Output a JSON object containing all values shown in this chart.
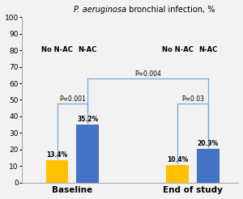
{
  "title_italic": "P. aeruginosa",
  "title_rest": " bronchial infection, %",
  "ylim": [
    0,
    100
  ],
  "yticks": [
    0,
    10,
    20,
    30,
    40,
    50,
    60,
    70,
    80,
    90,
    100
  ],
  "groups": [
    "Baseline",
    "End of study"
  ],
  "bars": {
    "baseline_no_nac": {
      "value": 13.4,
      "color": "#FFC000",
      "label": "13.4%"
    },
    "baseline_nac": {
      "value": 35.2,
      "color": "#4472C4",
      "label": "35.2%"
    },
    "end_no_nac": {
      "value": 10.4,
      "color": "#FFC000",
      "label": "10.4%"
    },
    "end_nac": {
      "value": 20.3,
      "color": "#4472C4",
      "label": "20.3%"
    }
  },
  "pvalues": {
    "baseline": "P=0.001",
    "end": "P=0.03",
    "overall": "P=0.004"
  },
  "background_color": "#f2f2f2",
  "bracket_color": "#7da6d4"
}
